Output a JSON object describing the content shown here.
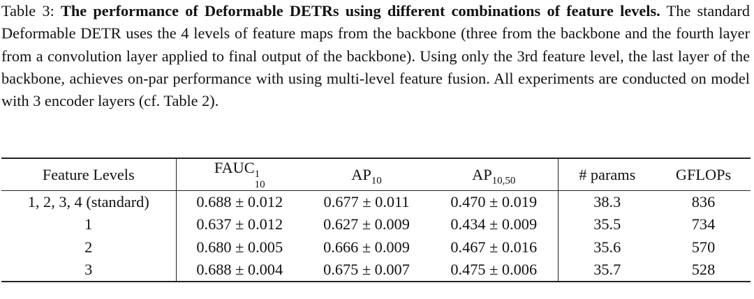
{
  "caption": {
    "label": "Table 3:",
    "title": "The performance of Deformable DETRs using different combinations of feature levels.",
    "text": "The standard Deformable DETR uses the 4 levels of feature maps from the backbone (three from the backbone and the fourth layer from a convolution layer applied to final output of the backbone). Using only the 3rd feature level, the last layer of the backbone, achieves on-par performance with using multi-level feature fusion. All experiments are conducted on model with 3 encoder layers (cf. Table 2)."
  },
  "table": {
    "header": [
      {
        "text": "Feature Levels"
      },
      {
        "base": "FAUC",
        "sup": "1",
        "sub": "10"
      },
      {
        "base": "AP",
        "sub": "10"
      },
      {
        "base": "AP",
        "sub": "10,50"
      },
      {
        "text": "# params"
      },
      {
        "text": "GFLOPs"
      }
    ],
    "rows": [
      [
        "1, 2, 3, 4 (standard)",
        "0.688 ± 0.012",
        "0.677 ± 0.011",
        "0.470 ± 0.019",
        "38.3",
        "836"
      ],
      [
        "1",
        "0.637 ± 0.012",
        "0.627 ± 0.009",
        "0.434 ± 0.009",
        "35.5",
        "734"
      ],
      [
        "2",
        "0.680 ± 0.005",
        "0.666 ± 0.009",
        "0.467 ± 0.016",
        "35.6",
        "570"
      ],
      [
        "3",
        "0.688 ± 0.004",
        "0.675 ± 0.007",
        "0.475 ± 0.006",
        "35.7",
        "528"
      ]
    ]
  }
}
